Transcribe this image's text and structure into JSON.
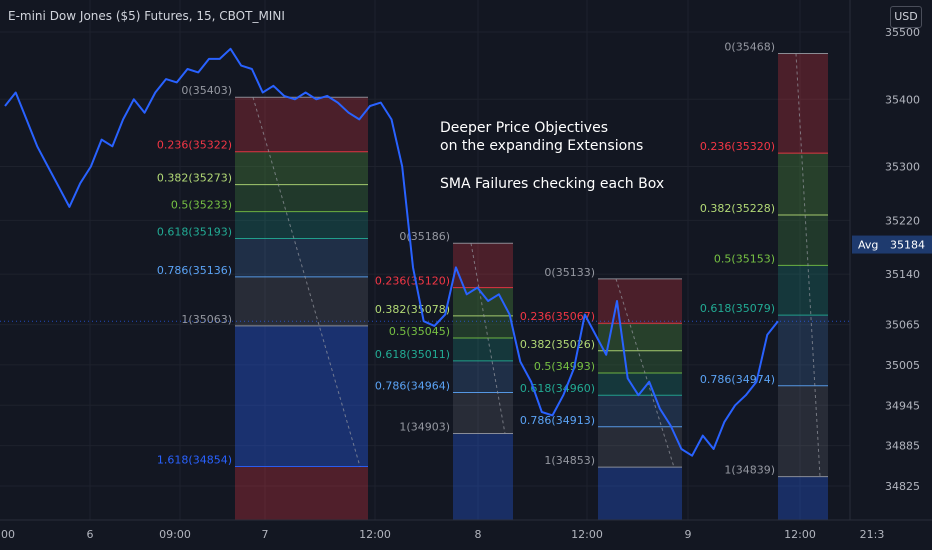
{
  "header": {
    "title": "E-mini Dow Jones ($5) Futures, 15, CBOT_MINI",
    "currency": "USD"
  },
  "annotations": {
    "line1": "Deeper Price Objectives",
    "line2": "on the expanding Extensions",
    "line3": "SMA Failures checking each Box"
  },
  "price_axis": {
    "ticks": [
      "35500",
      "35400",
      "35300",
      "35220",
      "35140",
      "35065",
      "35005",
      "34945",
      "34885",
      "34825"
    ],
    "avg_label": "Avg",
    "avg_value": "35184"
  },
  "time_axis": {
    "ticks": [
      "00",
      "6",
      "09:00",
      "7",
      "12:00",
      "8",
      "12:00",
      "9",
      "12:00",
      "21:3"
    ]
  },
  "colors": {
    "background": "#131722",
    "price_line": "#2962ff",
    "fib_red": "#f23645",
    "fib_green_light": "#b2d976",
    "fib_green": "#76c043",
    "fib_teal": "#22ab94",
    "fib_blue": "#5ba3f5",
    "fib_gray": "#9598a1",
    "fib_deep_blue": "#2962ff"
  },
  "chart_data": {
    "type": "line",
    "title": "E-mini Dow Jones ($5) Futures, 15, CBOT_MINI",
    "ylim": [
      34790,
      35510
    ],
    "price_series": [
      [
        "6",
        35390
      ],
      [
        "6",
        35410
      ],
      [
        "6",
        35370
      ],
      [
        "6",
        35330
      ],
      [
        "6",
        35300
      ],
      [
        "6",
        35270
      ],
      [
        "6",
        35240
      ],
      [
        "6",
        35275
      ],
      [
        "6",
        35300
      ],
      [
        "6",
        35340
      ],
      [
        "6",
        35330
      ],
      [
        "6",
        35370
      ],
      [
        "6",
        35400
      ],
      [
        "6",
        35380
      ],
      [
        "6",
        35410
      ],
      [
        "6",
        35430
      ],
      [
        "6",
        35425
      ],
      [
        "6",
        35445
      ],
      [
        "6",
        35440
      ],
      [
        "6",
        35460
      ],
      [
        "09:00",
        35460
      ],
      [
        "09:00",
        35475
      ],
      [
        "09:00",
        35450
      ],
      [
        "09:00",
        35445
      ],
      [
        "09:00",
        35410
      ],
      [
        "09:00",
        35420
      ],
      [
        "7",
        35405
      ],
      [
        "7",
        35400
      ],
      [
        "7",
        35410
      ],
      [
        "7",
        35400
      ],
      [
        "7",
        35405
      ],
      [
        "7",
        35395
      ],
      [
        "7",
        35380
      ],
      [
        "7",
        35370
      ],
      [
        "7",
        35390
      ],
      [
        "7",
        35395
      ],
      [
        "7",
        35370
      ],
      [
        "7",
        35300
      ],
      [
        "7",
        35150
      ],
      [
        "12:00",
        35070
      ],
      [
        "12:00",
        35063
      ],
      [
        "12:00",
        35080
      ],
      [
        "12:00",
        35150
      ],
      [
        "12:00",
        35110
      ],
      [
        "12:00",
        35120
      ],
      [
        "12:00",
        35100
      ],
      [
        "8",
        35110
      ],
      [
        "8",
        35080
      ],
      [
        "8",
        35010
      ],
      [
        "8",
        34980
      ],
      [
        "8",
        34935
      ],
      [
        "8",
        34930
      ],
      [
        "8",
        34960
      ],
      [
        "8",
        35000
      ],
      [
        "12:00",
        35080
      ],
      [
        "12:00",
        35050
      ],
      [
        "12:00",
        35020
      ],
      [
        "12:00",
        35100
      ],
      [
        "12:00",
        34985
      ],
      [
        "12:00",
        34960
      ],
      [
        "9",
        34980
      ],
      [
        "9",
        34940
      ],
      [
        "9",
        34915
      ],
      [
        "9",
        34880
      ],
      [
        "9",
        34870
      ],
      [
        "9",
        34900
      ],
      [
        "9",
        34880
      ],
      [
        "9",
        34920
      ],
      [
        "9",
        34945
      ],
      [
        "12:00",
        34960
      ],
      [
        "12:00",
        34980
      ],
      [
        "12:00",
        35050
      ],
      [
        "12:00",
        35070
      ]
    ],
    "fib_boxes": [
      {
        "levels": [
          {
            "ratio": "0",
            "price": 35403,
            "label": "0(35403)"
          },
          {
            "ratio": "0.236",
            "price": 35322,
            "label": "0.236(35322)"
          },
          {
            "ratio": "0.382",
            "price": 35273,
            "label": "0.382(35273)"
          },
          {
            "ratio": "0.5",
            "price": 35233,
            "label": "0.5(35233)"
          },
          {
            "ratio": "0.618",
            "price": 35193,
            "label": "0.618(35193)"
          },
          {
            "ratio": "0.786",
            "price": 35136,
            "label": "0.786(35136)"
          },
          {
            "ratio": "1",
            "price": 35063,
            "label": "1(35063)"
          },
          {
            "ratio": "1.618",
            "price": 34854,
            "label": "1.618(34854)"
          }
        ]
      },
      {
        "levels": [
          {
            "ratio": "0",
            "price": 35186,
            "label": "0(35186)"
          },
          {
            "ratio": "0.236",
            "price": 35120,
            "label": "0.236(35120)"
          },
          {
            "ratio": "0.382",
            "price": 35078,
            "label": "0.382(35078)"
          },
          {
            "ratio": "0.5",
            "price": 35045,
            "label": "0.5(35045)"
          },
          {
            "ratio": "0.618",
            "price": 35011,
            "label": "0.618(35011)"
          },
          {
            "ratio": "0.786",
            "price": 34964,
            "label": "0.786(34964)"
          },
          {
            "ratio": "1",
            "price": 34903,
            "label": "1(34903)"
          }
        ]
      },
      {
        "levels": [
          {
            "ratio": "0",
            "price": 35133,
            "label": "0(35133)"
          },
          {
            "ratio": "0.236",
            "price": 35067,
            "label": "0.236(35067)"
          },
          {
            "ratio": "0.382",
            "price": 35026,
            "label": "0.382(35026)"
          },
          {
            "ratio": "0.5",
            "price": 34993,
            "label": "0.5(34993)"
          },
          {
            "ratio": "0.618",
            "price": 34960,
            "label": "0.618(34960)"
          },
          {
            "ratio": "0.786",
            "price": 34913,
            "label": "0.786(34913)"
          },
          {
            "ratio": "1",
            "price": 34853,
            "label": "1(34853)"
          }
        ]
      },
      {
        "levels": [
          {
            "ratio": "0",
            "price": 35468,
            "label": "0(35468)"
          },
          {
            "ratio": "0.236",
            "price": 35320,
            "label": "0.236(35320)"
          },
          {
            "ratio": "0.382",
            "price": 35228,
            "label": "0.382(35228)"
          },
          {
            "ratio": "0.5",
            "price": 35153,
            "label": "0.5(35153)"
          },
          {
            "ratio": "0.618",
            "price": 35079,
            "label": "0.618(35079)"
          },
          {
            "ratio": "0.786",
            "price": 34974,
            "label": "0.786(34974)"
          },
          {
            "ratio": "1",
            "price": 34839,
            "label": "1(34839)"
          }
        ]
      }
    ]
  }
}
